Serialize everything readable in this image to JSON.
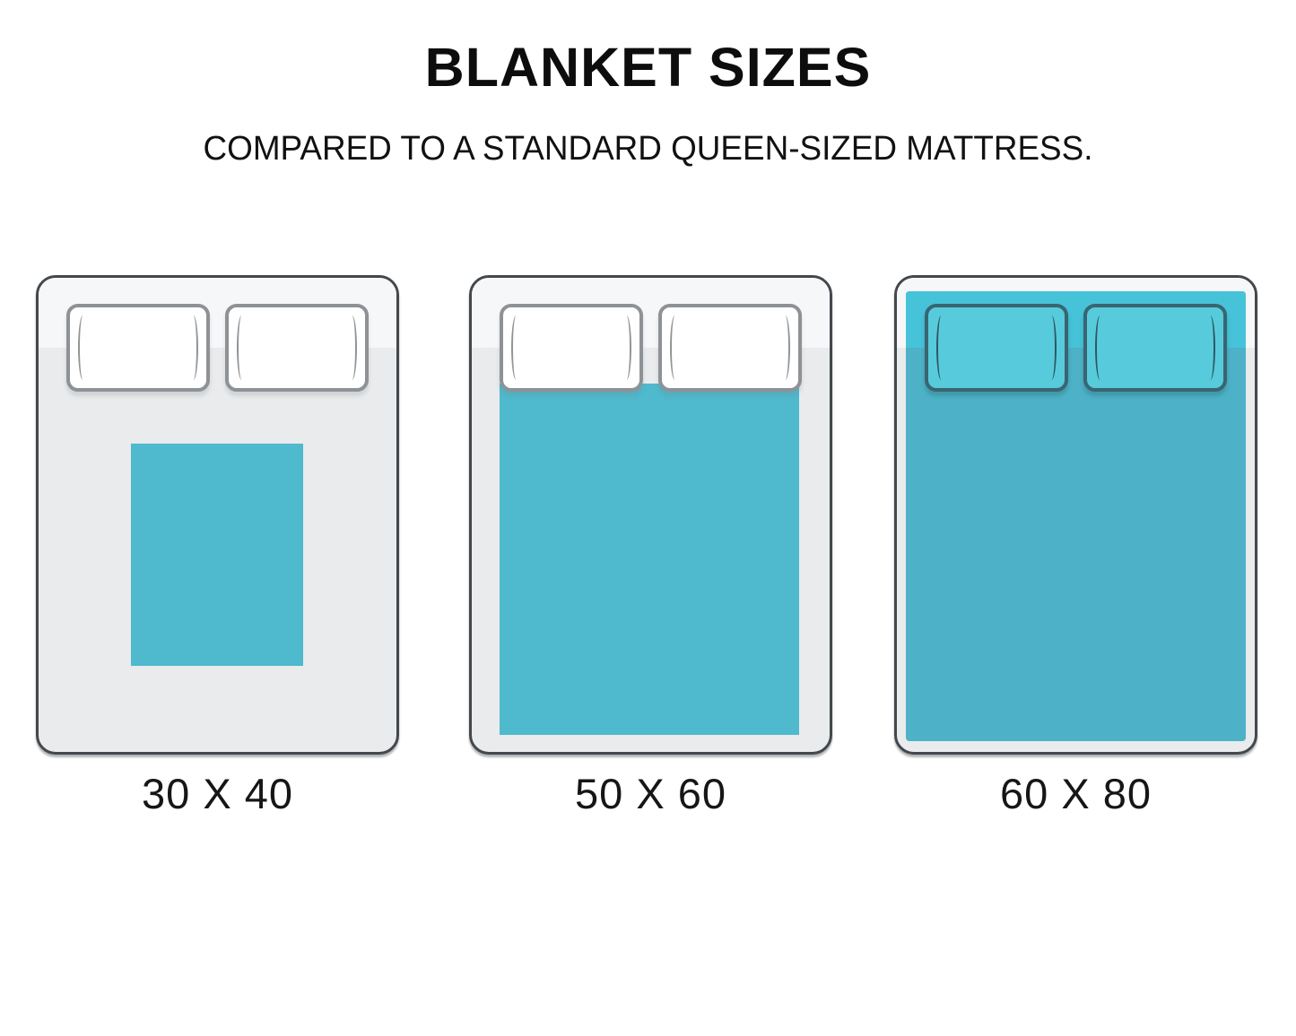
{
  "header": {
    "title": "BLANKET SIZES",
    "subtitle": "COMPARED TO A STANDARD QUEEN-SIZED MATTRESS."
  },
  "beds": [
    {
      "label": "30 X 40",
      "blanket_size": "30 X 40",
      "coverage": "small center patch",
      "pillows_covered": false
    },
    {
      "label": "50 X 60",
      "blanket_size": "50 X 60",
      "coverage": "full width below pillows",
      "pillows_covered": false
    },
    {
      "label": "60 X 80",
      "blanket_size": "60 X 80",
      "coverage": "entire mattress including pillows",
      "pillows_covered": true
    }
  ],
  "colors": {
    "blanket": "#4fb9cd",
    "blanket_shaded": "#4db2c7",
    "blanket_bright": "#46c3d9",
    "pillow_white_fill": "#ffffff",
    "pillow_grey_border": "#8e9296",
    "pillow_grey_crease": "#909497",
    "pillow_teal_fill": "#57cbdc",
    "pillow_teal_border": "#396571",
    "pillow_teal_crease": "#2e5762",
    "bed_border": "#43484d",
    "bed_upper": "#f6f7f9",
    "bed_lower": "#e9ebec",
    "label_text": "#161616"
  }
}
